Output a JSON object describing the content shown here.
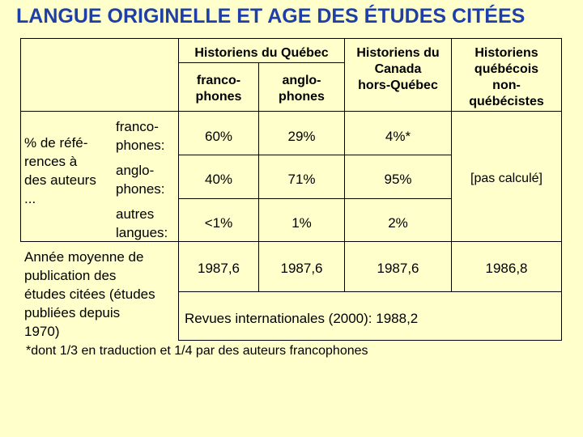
{
  "title": "LANGUE ORIGINELLE ET AGE DES ÉTUDES CITÉES",
  "headers": {
    "quebec_group": "Historiens du Québec",
    "quebec_franco": [
      "franco-",
      "phones"
    ],
    "quebec_anglo": [
      "anglo-",
      "phones"
    ],
    "canada": [
      "Historiens du",
      "Canada",
      "hors-Québec"
    ],
    "non_quebecois": [
      "Historiens",
      "québécois",
      "non-",
      "québécistes"
    ]
  },
  "row_group_label": [
    "% de réfé-",
    "rences à",
    "des auteurs",
    "..."
  ],
  "rows": [
    {
      "label": [
        "franco-",
        "phones:"
      ],
      "values": [
        "60%",
        "29%",
        "4%*"
      ]
    },
    {
      "label": [
        "anglo-",
        "phones:"
      ],
      "values": [
        "40%",
        "71%",
        "95%"
      ]
    },
    {
      "label": [
        "autres",
        "langues:"
      ],
      "values": [
        "<1%",
        "1%",
        "2%"
      ]
    }
  ],
  "merged_not_calculated": "[pas calculé]",
  "year_row": {
    "label": [
      "Année moyenne de",
      "publication des",
      "études citées (études",
      "publiées depuis",
      "1970)"
    ],
    "values": [
      "1987,6",
      "1987,6",
      "1987,6",
      "1986,8"
    ],
    "international": "Revues internationales (2000): 1988,2"
  },
  "footnote": "*dont 1/3 en traduction et 1/4 par des auteurs francophones"
}
